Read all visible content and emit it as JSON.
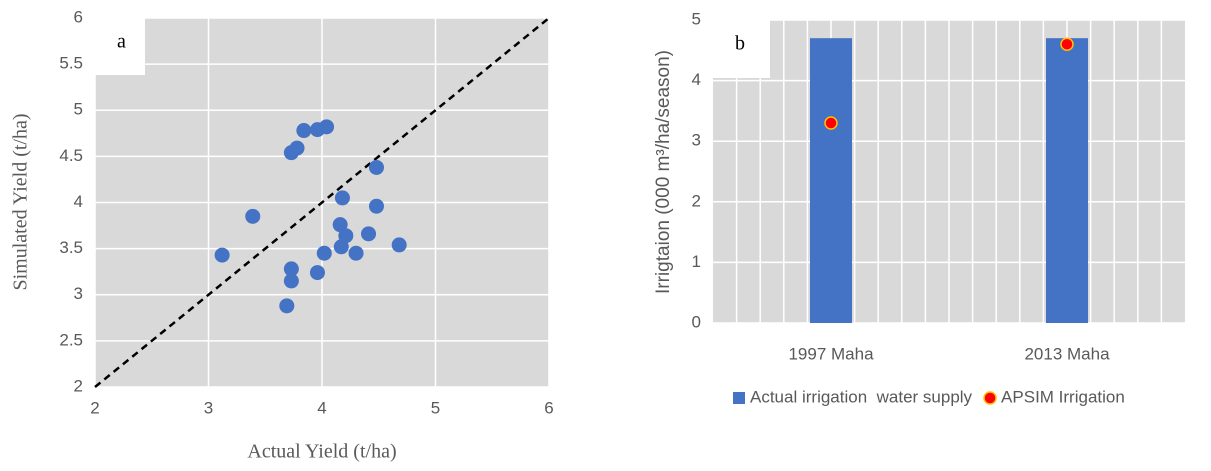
{
  "chart_data": [
    {
      "type": "scatter",
      "label": "a",
      "x_label": "Actual Yield (t/ha)",
      "y_label": "Simulated Yield (t/ha)",
      "x": [
        3.12,
        3.39,
        3.69,
        3.73,
        3.73,
        3.73,
        3.78,
        3.84,
        3.96,
        4.04,
        3.96,
        4.02,
        4.16,
        4.17,
        4.18,
        4.21,
        4.3,
        4.41,
        4.48,
        4.48,
        4.68
      ],
      "values": [
        3.43,
        3.85,
        2.88,
        3.15,
        3.28,
        4.54,
        4.59,
        4.78,
        4.79,
        4.82,
        3.24,
        3.45,
        3.76,
        3.52,
        4.05,
        3.64,
        3.45,
        3.66,
        4.38,
        3.96,
        3.54
      ],
      "color": "#4472c4",
      "xlim": [
        2,
        6
      ],
      "ylim": [
        2,
        6
      ],
      "xticks": [
        2,
        3,
        4,
        5,
        6
      ],
      "yticks": [
        2,
        2.5,
        3,
        3.5,
        4,
        4.5,
        5,
        5.5,
        6
      ],
      "grid": true
    },
    {
      "type": "bar",
      "label": "b",
      "y_label": "Irrigtaion (000 m³/ha/season)",
      "categories": [
        "1997 Maha",
        "2013 Maha"
      ],
      "series": [
        {
          "name": "Actual irrigation  water supply",
          "color": "#4472c4",
          "type": "bar",
          "values": [
            4.7,
            4.7
          ]
        },
        {
          "name": "APSIM Irrigation",
          "color": "#ff0000",
          "type": "scatter",
          "values": [
            3.3,
            4.6
          ]
        }
      ],
      "ylim": [
        0,
        5
      ],
      "yticks": [
        0,
        1,
        2,
        3,
        4,
        5
      ],
      "grid": true,
      "legend": "bottom"
    }
  ]
}
